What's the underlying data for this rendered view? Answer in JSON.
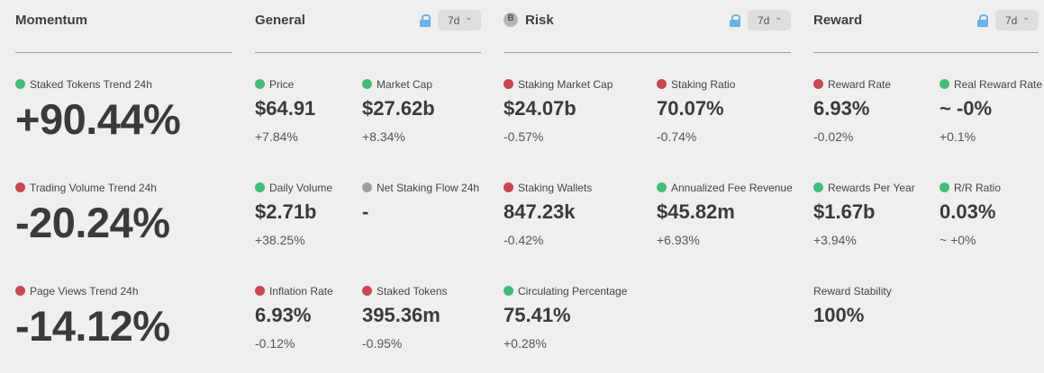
{
  "momentum": {
    "title": "Momentum",
    "metrics": [
      {
        "label": "Staked Tokens Trend 24h",
        "value": "+90.44%"
      },
      {
        "label": "Trading Volume Trend 24h",
        "value": "-20.24%"
      },
      {
        "label": "Page Views Trend 24h",
        "value": "-14.12%"
      }
    ]
  },
  "general": {
    "title": "General",
    "period": "7d",
    "metrics": [
      {
        "label": "Price",
        "value": "$64.91",
        "change": "+7.84%"
      },
      {
        "label": "Market Cap",
        "value": "$27.62b",
        "change": "+8.34%"
      },
      {
        "label": "Daily Volume",
        "value": "$2.71b",
        "change": "+38.25%"
      },
      {
        "label": "Net Staking Flow 24h",
        "value": "-",
        "change": ""
      },
      {
        "label": "Inflation Rate",
        "value": "6.93%",
        "change": "-0.12%"
      },
      {
        "label": "Staked Tokens",
        "value": "395.36m",
        "change": "-0.95%"
      }
    ]
  },
  "risk": {
    "title": "Risk",
    "coin_letter": "B",
    "period": "7d",
    "metrics": [
      {
        "label": "Staking Market Cap",
        "value": "$24.07b",
        "change": "-0.57%"
      },
      {
        "label": "Staking Ratio",
        "value": "70.07%",
        "change": "-0.74%"
      },
      {
        "label": "Staking Wallets",
        "value": "847.23k",
        "change": "-0.42%"
      },
      {
        "label": "Annualized Fee Revenue",
        "value": "$45.82m",
        "change": "+6.93%"
      },
      {
        "label": "Circulating Percentage",
        "value": "75.41%",
        "change": "+0.28%"
      }
    ]
  },
  "reward": {
    "title": "Reward",
    "period": "7d",
    "metrics": [
      {
        "label": "Reward Rate",
        "value": "6.93%",
        "change": "-0.02%"
      },
      {
        "label": "Real Reward Rate",
        "value": "~ -0%",
        "change": "+0.1%"
      },
      {
        "label": "Rewards Per Year",
        "value": "$1.67b",
        "change": "+3.94%"
      },
      {
        "label": "R/R Ratio",
        "value": "0.03%",
        "change": "~ +0%"
      },
      {
        "label": "Reward Stability",
        "value": "100%",
        "change": ""
      }
    ]
  },
  "icons": {
    "chevron": "chevron-down-icon",
    "lock": "lock-icon",
    "coin": "coin-icon",
    "status_dot": "status-dot-icon"
  },
  "colors": {
    "background": "#efefef",
    "positive_dot": "#3cc078",
    "negative_dot": "#d0434f",
    "neutral_dot": "#9e9e9e",
    "lock": "#66b5e8"
  }
}
